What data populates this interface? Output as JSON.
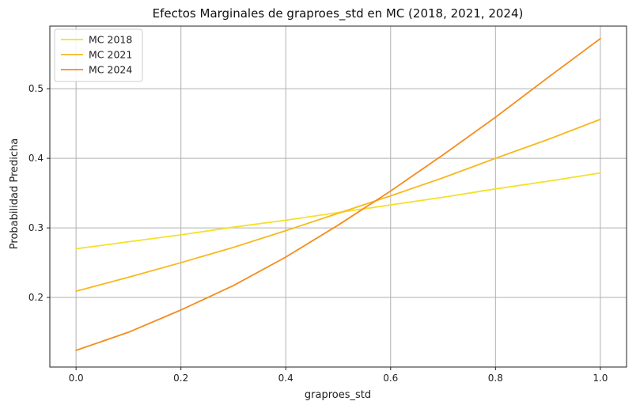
{
  "chart_data": {
    "type": "line",
    "title": "Efectos Marginales de graproes_std en MC (2018, 2021, 2024)",
    "xlabel": "graproes_std",
    "ylabel": "Probabilidad Predicha",
    "xlim": [
      -0.05,
      1.05
    ],
    "ylim": [
      0.1,
      0.59
    ],
    "xticks": [
      0.0,
      0.2,
      0.4,
      0.6,
      0.8,
      1.0
    ],
    "xtick_labels": [
      "0.0",
      "0.2",
      "0.4",
      "0.6",
      "0.8",
      "1.0"
    ],
    "yticks": [
      0.2,
      0.3,
      0.4,
      0.5
    ],
    "ytick_labels": [
      "0.2",
      "0.3",
      "0.4",
      "0.5"
    ],
    "grid": true,
    "legend_position": "top-left",
    "x": [
      0.0,
      0.1,
      0.2,
      0.3,
      0.4,
      0.5,
      0.6,
      0.7,
      0.8,
      0.9,
      1.0
    ],
    "series": [
      {
        "name": "MC 2018",
        "color": "#f5e02a",
        "values": [
          0.27,
          0.28,
          0.29,
          0.301,
          0.311,
          0.322,
          0.333,
          0.344,
          0.356,
          0.367,
          0.379
        ]
      },
      {
        "name": "MC 2021",
        "color": "#f8b81f",
        "values": [
          0.209,
          0.229,
          0.25,
          0.272,
          0.296,
          0.321,
          0.346,
          0.372,
          0.4,
          0.427,
          0.456
        ]
      },
      {
        "name": "MC 2024",
        "color": "#f58c1e",
        "values": [
          0.124,
          0.15,
          0.182,
          0.217,
          0.258,
          0.304,
          0.353,
          0.405,
          0.459,
          0.516,
          0.572
        ]
      }
    ]
  }
}
